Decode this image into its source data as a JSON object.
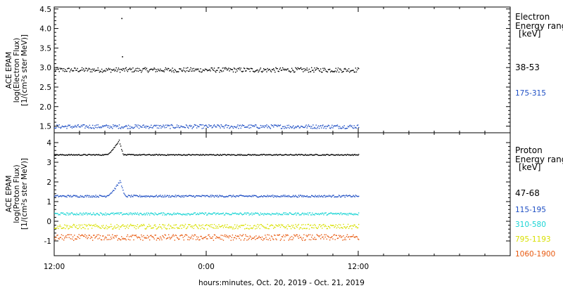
{
  "chart_data": [
    {
      "type": "scatter",
      "ylabel": [
        "ACE EPAM",
        "log(Electron Flux)",
        "[1/(cm²s ster MeV)]"
      ],
      "ylim": [
        1.33,
        4.55
      ],
      "yticks": [
        "1.5",
        "2.0",
        "2.5",
        "3.0",
        "3.5",
        "4.0",
        "4.5"
      ],
      "legend_title": [
        "Electron",
        "Energy ranges",
        "[keV]"
      ],
      "series": [
        {
          "name": "38-53",
          "color": "#000000",
          "level": 2.95,
          "noise": 0.06,
          "spikes": [
            {
              "x": 17.3,
              "y": 4.27
            },
            {
              "x": 17.35,
              "y": 3.29
            }
          ]
        },
        {
          "name": "175-315",
          "color": "#1f4fc4",
          "level": 1.5,
          "noise": 0.05,
          "spikes": []
        }
      ]
    },
    {
      "type": "scatter",
      "ylabel": [
        "ACE EPAM",
        "log(Proton Flux)",
        "[1/(cm²s ster MeV)]"
      ],
      "ylim": [
        -1.75,
        4.5
      ],
      "yticks": [
        "-1",
        "0",
        "1",
        "2",
        "3",
        "4"
      ],
      "legend_title": [
        "Proton",
        "Energy ranges",
        "[keV]"
      ],
      "series": [
        {
          "name": "47-68",
          "color": "#000000",
          "level": 3.4,
          "noise": 0.03,
          "bump": {
            "from": 16.0,
            "to": 17.5,
            "peak": 4.15
          }
        },
        {
          "name": "115-195",
          "color": "#1f4fc4",
          "level": 1.3,
          "noise": 0.05,
          "bump": {
            "from": 16.0,
            "to": 17.6,
            "peak": 2.1
          }
        },
        {
          "name": "310-580",
          "color": "#19d4d4",
          "level": 0.4,
          "noise": 0.06
        },
        {
          "name": "795-1193",
          "color": "#d8e000",
          "level": -0.25,
          "noise": 0.12
        },
        {
          "name": "1060-1900",
          "color": "#e85a10",
          "level": -0.8,
          "noise": 0.15
        }
      ]
    }
  ],
  "x_axis": {
    "range_hours": [
      12,
      48
    ],
    "data_end_hours": 36.0,
    "tick_labels": [
      {
        "at": 12,
        "label": "12:00"
      },
      {
        "at": 24,
        "label": "0:00"
      },
      {
        "at": 36,
        "label": "12:00"
      }
    ],
    "title": "hours:minutes, Oct. 20, 2019 - Oct. 21, 2019"
  }
}
